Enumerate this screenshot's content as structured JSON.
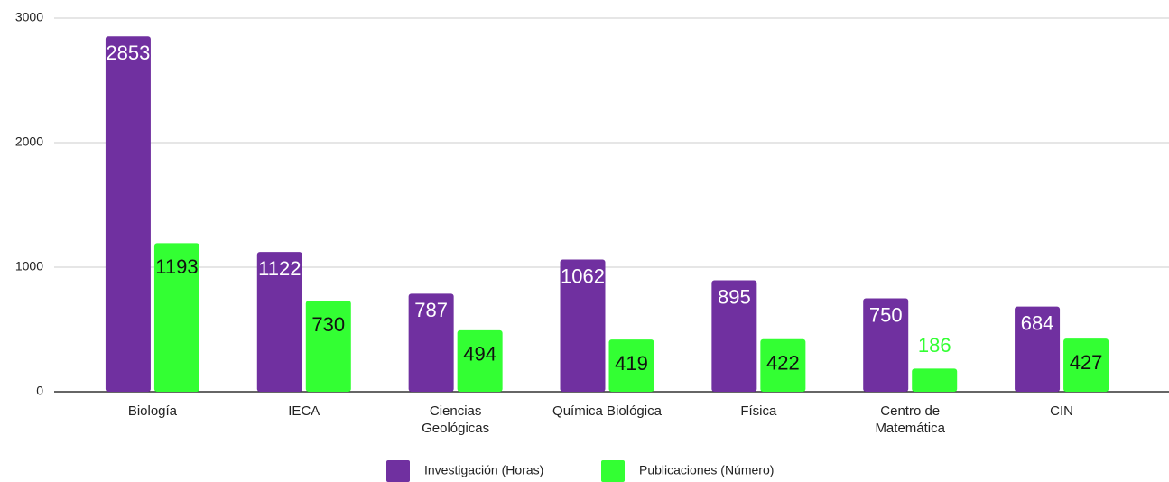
{
  "chart_data": {
    "type": "bar",
    "categories": [
      "Biología",
      "IECA",
      "Ciencias\nGeológicas",
      "Química Biológica",
      "Física",
      "Centro de\nMatemática",
      "CIN"
    ],
    "series": [
      {
        "name": "Investigación (Horas)",
        "color": "#7030a0",
        "values": [
          2853,
          1122,
          787,
          1062,
          895,
          750,
          684
        ]
      },
      {
        "name": "Publicaciones (Número)",
        "color": "#33ff33",
        "values": [
          1193,
          730,
          494,
          419,
          422,
          186,
          427
        ]
      }
    ],
    "ylim": [
      0,
      3000
    ],
    "yticks": [
      0,
      1000,
      2000,
      3000
    ],
    "grid": true
  }
}
